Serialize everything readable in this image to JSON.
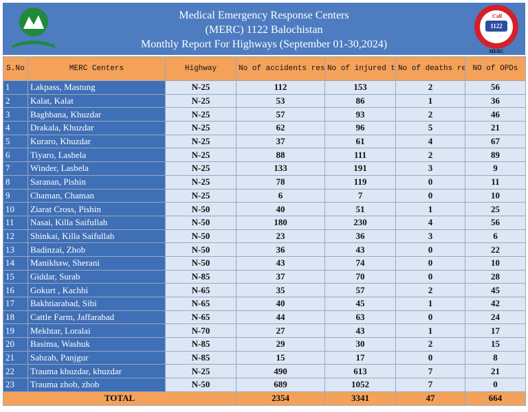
{
  "header": {
    "title_lines": [
      "Medical Emergency Response Centers",
      "(MERC) 1122 Balochistan",
      "Monthly Report For Highways (September 01-30,2024)"
    ],
    "logo_right": {
      "call": "Call",
      "number": "1122",
      "name": "MERC"
    }
  },
  "table": {
    "columns": [
      "S.No",
      "MERC Centers",
      "Highway",
      "No of accidents responded",
      "No of injured treated",
      "No of deaths recorded",
      "NO of OPDs"
    ],
    "rows": [
      [
        1,
        "Lakpass, Mastung",
        "N-25",
        112,
        153,
        2,
        56
      ],
      [
        2,
        "Kalat, Kalat",
        "N-25",
        53,
        86,
        1,
        36
      ],
      [
        3,
        "Baghbana, Khuzdar",
        "N-25",
        57,
        93,
        2,
        46
      ],
      [
        4,
        "Drakala, Khuzdar",
        "N-25",
        62,
        96,
        5,
        21
      ],
      [
        5,
        "Kuraro, Khuzdar",
        "N-25",
        37,
        61,
        4,
        67
      ],
      [
        6,
        "Tiyaro, Lasbela",
        "N-25",
        88,
        111,
        2,
        89
      ],
      [
        7,
        "Winder, Lasbela",
        "N-25",
        133,
        191,
        3,
        9
      ],
      [
        8,
        "Saranan, Pishin",
        "N-25",
        78,
        119,
        0,
        11
      ],
      [
        9,
        "Chaman, Chaman",
        "N-25",
        6,
        7,
        0,
        10
      ],
      [
        10,
        "Ziarat Cross, Pishin",
        "N-50",
        40,
        51,
        1,
        25
      ],
      [
        11,
        "Nasai, Killa Saifullah",
        "N-50",
        180,
        230,
        4,
        56
      ],
      [
        12,
        "Shinkai, Killa Saifullah",
        "N-50",
        23,
        36,
        3,
        6
      ],
      [
        13,
        "Badinzai, Zhob",
        "N-50",
        36,
        43,
        0,
        22
      ],
      [
        14,
        "Manikhaw, Sherani",
        "N-50",
        43,
        74,
        0,
        10
      ],
      [
        15,
        "Giddar, Surab",
        "N-85",
        37,
        70,
        0,
        28
      ],
      [
        16,
        "Gokurt , Kachhi",
        "N-65",
        35,
        57,
        2,
        45
      ],
      [
        17,
        "Bakhtiarabad, Sibi",
        "N-65",
        40,
        45,
        1,
        42
      ],
      [
        18,
        "Cattle Farm, Jaffarabad",
        "N-65",
        44,
        63,
        0,
        24
      ],
      [
        19,
        "Mekhtar, Loralai",
        "N-70",
        27,
        43,
        1,
        17
      ],
      [
        20,
        "Basima, Washuk",
        "N-85",
        29,
        30,
        2,
        15
      ],
      [
        21,
        "Sabzab, Panjgur",
        "N-85",
        15,
        17,
        0,
        8
      ],
      [
        22,
        "Trauma khuzdar, khuzdar",
        "N-25",
        490,
        613,
        7,
        21
      ],
      [
        23,
        "Trauma zhob, zhob",
        "N-50",
        689,
        1052,
        7,
        0
      ]
    ],
    "total": {
      "label": "TOTAL",
      "values": [
        2354,
        3341,
        47,
        664
      ]
    }
  }
}
